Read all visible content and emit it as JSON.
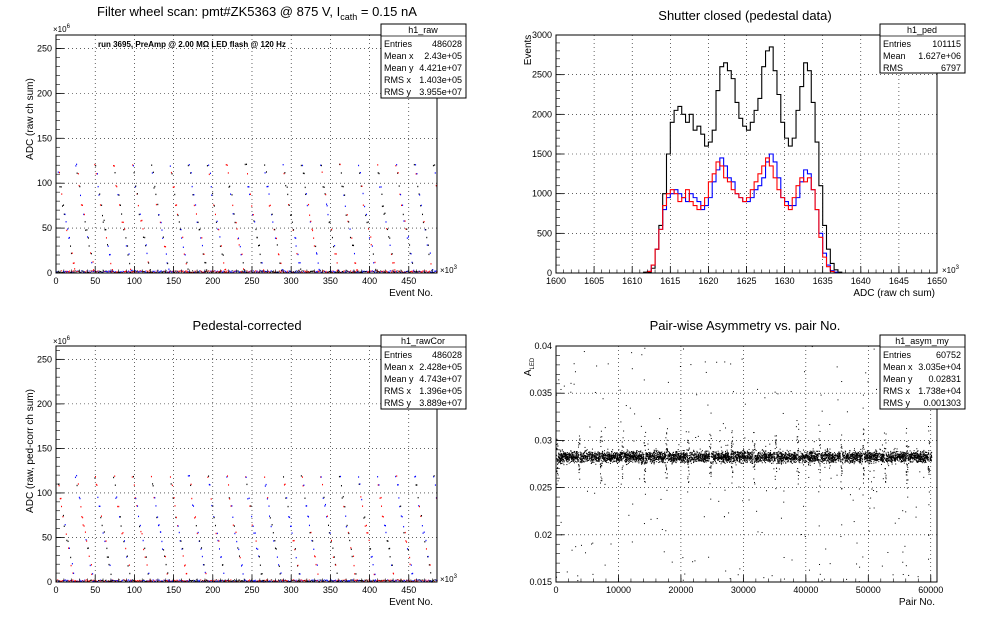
{
  "chart_data": [
    {
      "type": "scatter",
      "title": "Filter wheel scan: pmt#ZK5363 @   875 V, I",
      "title_sub": "cath",
      "title_tail": " = 0.15 nA",
      "annotation": "run 3695, PreAmp @ 2.00 MΩ LED flash @  120 Hz",
      "xlabel": "Event No.",
      "ylabel": "ADC (raw ch sum)",
      "x_multiplier": "×10",
      "x_multiplier_exp": "3",
      "y_multiplier": "×10",
      "y_multiplier_exp": "6",
      "xlim": [
        0,
        486
      ],
      "ylim": [
        0,
        265
      ],
      "x_ticks": [
        0,
        50,
        100,
        150,
        200,
        250,
        300,
        350,
        400,
        450
      ],
      "y_ticks": [
        0,
        50,
        100,
        150,
        200,
        250
      ],
      "grid": true,
      "marker_colors": [
        "#ff0000",
        "#0000ff",
        "#000000"
      ],
      "step_levels": [
        121,
        112,
        97,
        88,
        76,
        66,
        58,
        49,
        40,
        31,
        22,
        12,
        4
      ],
      "stats": {
        "name": "h1_raw",
        "rows": [
          {
            "label": "Entries",
            "value": "486028"
          },
          {
            "label": "Mean x",
            "value": "2.43e+05"
          },
          {
            "label": "Mean y",
            "value": "4.421e+07"
          },
          {
            "label": "RMS x",
            "value": "1.403e+05"
          },
          {
            "label": "RMS y",
            "value": "3.955e+07"
          }
        ]
      }
    },
    {
      "type": "line",
      "title": "Shutter closed (pedestal data)",
      "xlabel": "ADC (raw ch sum)",
      "ylabel": "Events",
      "x_multiplier": "×10",
      "x_multiplier_exp": "3",
      "xlim": [
        1600,
        1650
      ],
      "ylim": [
        0,
        3000
      ],
      "x_ticks": [
        1600,
        1605,
        1610,
        1615,
        1620,
        1625,
        1630,
        1635,
        1640,
        1645,
        1650
      ],
      "y_ticks": [
        0,
        500,
        1000,
        1500,
        2000,
        2500,
        3000
      ],
      "grid": true,
      "series": [
        {
          "color": "#000000",
          "x": [
            1610.5,
            1611.5,
            1612.5,
            1613,
            1613.5,
            1614,
            1614.5,
            1615,
            1615.5,
            1616,
            1616.5,
            1617,
            1617.5,
            1618,
            1618.5,
            1619,
            1619.5,
            1620,
            1620.5,
            1621,
            1621.5,
            1622,
            1622.5,
            1623,
            1623.5,
            1624,
            1624.5,
            1625,
            1625.5,
            1626,
            1626.5,
            1627,
            1627.5,
            1628,
            1628.5,
            1629,
            1629.5,
            1630,
            1630.5,
            1631,
            1631.5,
            1632,
            1632.5,
            1633,
            1633.5,
            1634,
            1634.5,
            1635,
            1635.5,
            1636,
            1636.5,
            1637,
            1637.5,
            1638,
            1638.5,
            1639,
            1639.5,
            1640,
            1640.5,
            1641,
            1642
          ],
          "y": [
            0,
            10,
            60,
            300,
            600,
            1000,
            1500,
            1900,
            2050,
            2100,
            2000,
            1900,
            2000,
            1800,
            1850,
            1750,
            1600,
            1650,
            1800,
            2300,
            2600,
            2650,
            2550,
            2450,
            2150,
            1950,
            1850,
            1800,
            1900,
            2050,
            2200,
            2600,
            2800,
            2850,
            2550,
            2250,
            1900,
            1700,
            1600,
            1700,
            2050,
            2350,
            2650,
            2550,
            2150,
            1650,
            1100,
            600,
            300,
            120,
            40,
            10,
            0,
            0,
            0,
            0,
            0,
            0,
            0,
            0,
            0
          ]
        },
        {
          "color": "#0000ff",
          "x": [
            1611,
            1612,
            1612.5,
            1613,
            1613.5,
            1614,
            1614.5,
            1615,
            1615.5,
            1616,
            1616.5,
            1617,
            1617.5,
            1618,
            1618.5,
            1619,
            1619.5,
            1620,
            1620.5,
            1621,
            1621.5,
            1622,
            1622.5,
            1623,
            1623.5,
            1624,
            1624.5,
            1625,
            1625.5,
            1626,
            1626.5,
            1627,
            1627.5,
            1628,
            1628.5,
            1629,
            1629.5,
            1630,
            1630.5,
            1631,
            1631.5,
            1632,
            1632.5,
            1633,
            1633.5,
            1634,
            1634.5,
            1635,
            1635.5,
            1636,
            1636.5,
            1637,
            1637.5,
            1638,
            1638.5,
            1639,
            1640,
            1641
          ],
          "y": [
            0,
            20,
            100,
            300,
            550,
            800,
            950,
            1000,
            1050,
            1000,
            950,
            900,
            1000,
            950,
            900,
            800,
            850,
            950,
            1150,
            1300,
            1450,
            1350,
            1200,
            1150,
            1000,
            950,
            900,
            900,
            950,
            1050,
            1100,
            1200,
            1400,
            1500,
            1400,
            1200,
            950,
            900,
            850,
            850,
            950,
            1150,
            1300,
            1250,
            1050,
            800,
            500,
            250,
            100,
            30,
            10,
            0,
            0,
            0,
            0,
            0,
            0,
            0
          ]
        },
        {
          "color": "#ff0000",
          "x": [
            1611,
            1612,
            1612.5,
            1613,
            1613.5,
            1614,
            1614.5,
            1615,
            1615.5,
            1616,
            1616.5,
            1617,
            1617.5,
            1618,
            1618.5,
            1619,
            1619.5,
            1620,
            1620.5,
            1621,
            1621.5,
            1622,
            1622.5,
            1623,
            1623.5,
            1624,
            1624.5,
            1625,
            1625.5,
            1626,
            1626.5,
            1627,
            1627.5,
            1628,
            1628.5,
            1629,
            1629.5,
            1630,
            1630.5,
            1631,
            1631.5,
            1632,
            1632.5,
            1633,
            1633.5,
            1634,
            1634.5,
            1635,
            1635.5,
            1636,
            1636.5,
            1637,
            1637.5,
            1638,
            1638.5,
            1639,
            1640,
            1641
          ],
          "y": [
            0,
            20,
            100,
            300,
            550,
            850,
            1000,
            1050,
            1000,
            900,
            950,
            1050,
            900,
            850,
            800,
            850,
            950,
            1150,
            1250,
            1400,
            1350,
            1200,
            1150,
            1050,
            1000,
            950,
            900,
            950,
            1050,
            1150,
            1250,
            1350,
            1450,
            1350,
            1200,
            1050,
            950,
            850,
            800,
            950,
            1100,
            1200,
            1150,
            1200,
            1050,
            800,
            450,
            200,
            80,
            20,
            0,
            0,
            0,
            0,
            0,
            0,
            0,
            0
          ]
        }
      ],
      "stats": {
        "name": "h1_ped",
        "rows": [
          {
            "label": "Entries",
            "value": "101115"
          },
          {
            "label": "Mean",
            "value": "1.627e+06"
          },
          {
            "label": "RMS",
            "value": "6797"
          }
        ]
      }
    },
    {
      "type": "scatter",
      "title": "Pedestal-corrected",
      "xlabel": "Event No.",
      "ylabel": "ADC (raw, ped-corr ch sum)",
      "x_multiplier": "×10",
      "x_multiplier_exp": "3",
      "y_multiplier": "×10",
      "y_multiplier_exp": "6",
      "xlim": [
        0,
        486
      ],
      "ylim": [
        0,
        265
      ],
      "x_ticks": [
        0,
        50,
        100,
        150,
        200,
        250,
        300,
        350,
        400,
        450
      ],
      "y_ticks": [
        0,
        50,
        100,
        150,
        200,
        250
      ],
      "grid": true,
      "marker_colors": [
        "#ff0000",
        "#0000ff",
        "#000000"
      ],
      "step_levels": [
        119,
        110,
        95,
        86,
        74,
        64,
        56,
        47,
        38,
        29,
        20,
        10,
        2
      ],
      "stats": {
        "name": "h1_rawCor",
        "rows": [
          {
            "label": "Entries",
            "value": "486028"
          },
          {
            "label": "Mean x",
            "value": "2.428e+05"
          },
          {
            "label": "Mean y",
            "value": "4.743e+07"
          },
          {
            "label": "RMS x",
            "value": "1.396e+05"
          },
          {
            "label": "RMS y",
            "value": "3.889e+07"
          }
        ]
      }
    },
    {
      "type": "scatter",
      "title": "Pair-wise Asymmetry vs. pair No.",
      "xlabel": "Pair No.",
      "ylabel": "A",
      "ylabel_sub": "LED",
      "xlim": [
        0,
        61000
      ],
      "ylim": [
        0.015,
        0.04
      ],
      "x_ticks": [
        0,
        10000,
        20000,
        30000,
        40000,
        50000,
        60000
      ],
      "y_ticks": [
        0.015,
        0.02,
        0.025,
        0.03,
        0.035,
        0.04
      ],
      "grid": true,
      "band_center": 0.0283,
      "stats": {
        "name": "h1_asym_my",
        "rows": [
          {
            "label": "Entries",
            "value": "60752"
          },
          {
            "label": "Mean x",
            "value": "3.035e+04"
          },
          {
            "label": "Mean y",
            "value": "0.02831"
          },
          {
            "label": "RMS x",
            "value": "1.738e+04"
          },
          {
            "label": "RMS y",
            "value": "0.001303"
          }
        ]
      }
    }
  ]
}
